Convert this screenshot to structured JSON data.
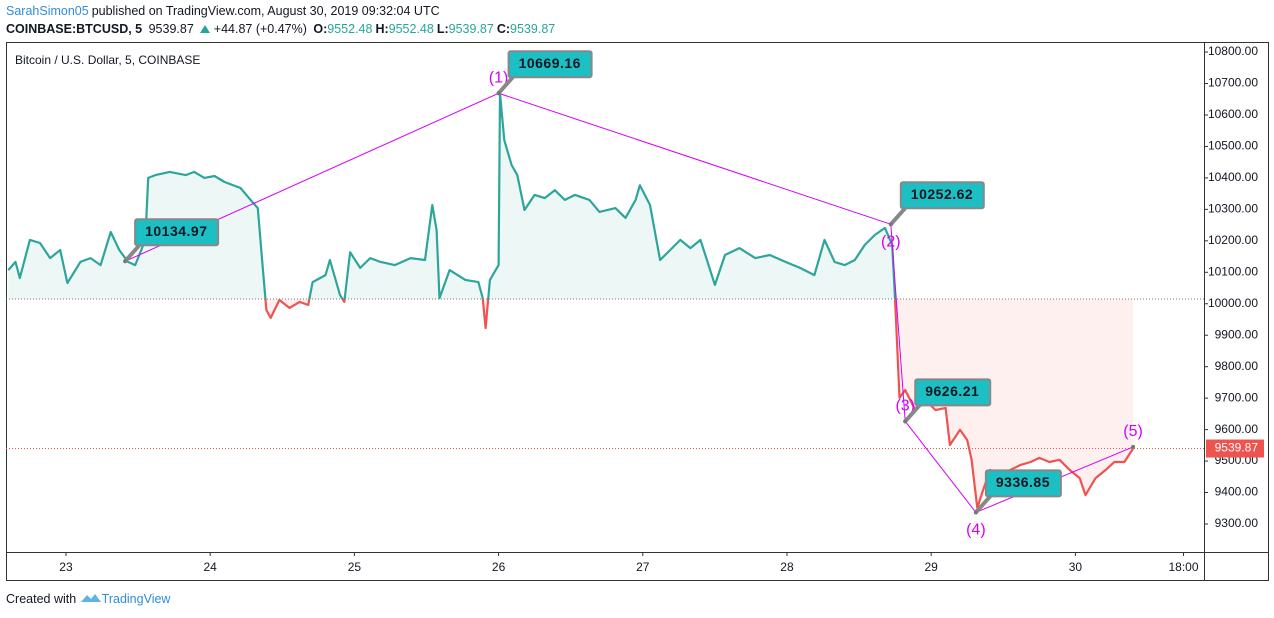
{
  "header": {
    "author": "SarahSimon05",
    "published": "published on TradingView.com, August 30, 2019 09:32:04 UTC",
    "symbol": "COINBASE:BTCUSD, 5",
    "price": "9539.87",
    "change": "+44.87 (+0.47%)",
    "ohlc": [
      {
        "key": "O:",
        "value": "9552.48"
      },
      {
        "key": "H:",
        "value": "9552.48"
      },
      {
        "key": "L:",
        "value": "9539.87"
      },
      {
        "key": "C:",
        "value": "9539.87"
      }
    ]
  },
  "footer": {
    "created": "Created with",
    "brand": "TradingView"
  },
  "chart_data": {
    "type": "line",
    "title": "Bitcoin / U.S. Dollar, 5, COINBASE",
    "x": [
      22.6,
      22.65,
      22.68,
      22.75,
      22.82,
      22.89,
      22.96,
      23.01,
      23.1,
      23.17,
      23.24,
      23.31,
      23.37,
      23.43,
      23.48,
      23.55,
      23.57,
      23.62,
      23.72,
      23.83,
      23.89,
      23.96,
      24.03,
      24.1,
      24.21,
      24.28,
      24.33,
      24.36,
      24.39,
      24.42,
      24.48,
      24.55,
      24.62,
      24.68,
      24.71,
      24.8,
      24.83,
      24.9,
      24.93,
      24.97,
      25.04,
      25.11,
      25.18,
      25.28,
      25.39,
      25.49,
      25.54,
      25.57,
      25.59,
      25.66,
      25.77,
      25.86,
      25.89,
      25.91,
      25.94,
      26,
      26.01,
      26.04,
      26.09,
      26.13,
      26.18,
      26.25,
      26.32,
      26.39,
      26.46,
      26.53,
      26.63,
      26.7,
      26.81,
      26.88,
      26.95,
      26.98,
      27.05,
      27.12,
      27.19,
      27.26,
      27.33,
      27.4,
      27.5,
      27.57,
      27.67,
      27.78,
      27.88,
      27.99,
      28.09,
      28.19,
      28.26,
      28.33,
      28.4,
      28.47,
      28.54,
      28.61,
      28.68,
      28.73,
      28.75,
      28.78,
      28.82,
      28.89,
      28.96,
      29.03,
      29.1,
      29.13,
      29.2,
      29.25,
      29.28,
      29.32,
      29.36,
      29.41,
      29.48,
      29.55,
      29.62,
      29.69,
      29.75,
      29.82,
      29.89,
      29.96,
      30.03,
      30.07,
      30.14,
      30.21,
      30.27,
      30.34,
      30.4
    ],
    "values": [
      10107,
      10133,
      10082,
      10203,
      10193,
      10145,
      10171,
      10066,
      10133,
      10145,
      10123,
      10228,
      10171,
      10133,
      10123,
      10203,
      10400,
      10409,
      10419,
      10409,
      10419,
      10400,
      10406,
      10387,
      10368,
      10330,
      10304,
      10139,
      9980,
      9955,
      10012,
      9987,
      10006,
      9996,
      10069,
      10091,
      10139,
      10028,
      10006,
      10164,
      10114,
      10145,
      10133,
      10123,
      10145,
      10139,
      10314,
      10234,
      10018,
      10107,
      10076,
      10069,
      10018,
      9923,
      10076,
      10123,
      10669,
      10520,
      10441,
      10409,
      10298,
      10346,
      10336,
      10361,
      10330,
      10346,
      10330,
      10292,
      10304,
      10273,
      10330,
      10377,
      10314,
      10139,
      10171,
      10203,
      10177,
      10203,
      10060,
      10155,
      10177,
      10145,
      10155,
      10133,
      10114,
      10091,
      10203,
      10133,
      10123,
      10139,
      10187,
      10219,
      10241,
      10187,
      10012,
      9701,
      9726,
      9662,
      9694,
      9662,
      9669,
      9551,
      9599,
      9567,
      9504,
      9351,
      9408,
      9472,
      9446,
      9472,
      9488,
      9497,
      9510,
      9497,
      9504,
      9472,
      9446,
      9392,
      9446,
      9472,
      9497,
      9497,
      9539.87
    ],
    "xlim": [
      22.584,
      30.892
    ],
    "ylim": [
      9211,
      10832
    ],
    "xticks": [
      23,
      24,
      25,
      26,
      27,
      28,
      29,
      30,
      {
        "value": 30.75,
        "label": "18:00"
      }
    ],
    "yticks": [
      {
        "value": 10800,
        "label": "10800.00"
      },
      {
        "value": 10700,
        "label": "10700.00"
      },
      {
        "value": 10600,
        "label": "10600.00"
      },
      {
        "value": 10500,
        "label": "10500.00"
      },
      {
        "value": 10400,
        "label": "10400.00"
      },
      {
        "value": 10300,
        "label": "10300.00"
      },
      {
        "value": 10200,
        "label": "10200.00"
      },
      {
        "value": 10100,
        "label": "10100.00"
      },
      {
        "value": 10000,
        "label": "10000.00"
      },
      {
        "value": 9900,
        "label": "9900.00"
      },
      {
        "value": 9800,
        "label": "9800.00"
      },
      {
        "value": 9700,
        "label": "9700.00"
      },
      {
        "value": 9600,
        "label": "9600.00"
      },
      {
        "value": 9500,
        "label": "9500.00"
      },
      {
        "value": 9400,
        "label": "9400.00"
      },
      {
        "value": 9300,
        "label": "9300.00"
      }
    ],
    "baseline": 10015,
    "up_color": "#2ea59b",
    "down_color": "#ef5350",
    "last_price": 9539.87,
    "pattern_color": "#d500f9",
    "callout_color": "#1cbfc3",
    "callouts": [
      {
        "x": 23.41,
        "value": 10134.97
      },
      {
        "x": 26.0,
        "value": 10669.16
      },
      {
        "x": 28.72,
        "value": 10252.62
      },
      {
        "x": 28.82,
        "value": 9626.21
      },
      {
        "x": 29.31,
        "value": 9336.85
      }
    ],
    "waves": [
      {
        "label": "(1)",
        "x": 26.0,
        "value": 10669.16,
        "position": "above"
      },
      {
        "label": "(2)",
        "x": 28.72,
        "value": 10252.62,
        "position": "below"
      },
      {
        "label": "(3)",
        "x": 28.82,
        "value": 9626.21,
        "position": "above"
      },
      {
        "label": "(4)",
        "x": 29.31,
        "value": 9336.85,
        "position": "below"
      },
      {
        "label": "(5)",
        "x": 30.4,
        "value": 9545,
        "position": "above"
      }
    ]
  }
}
